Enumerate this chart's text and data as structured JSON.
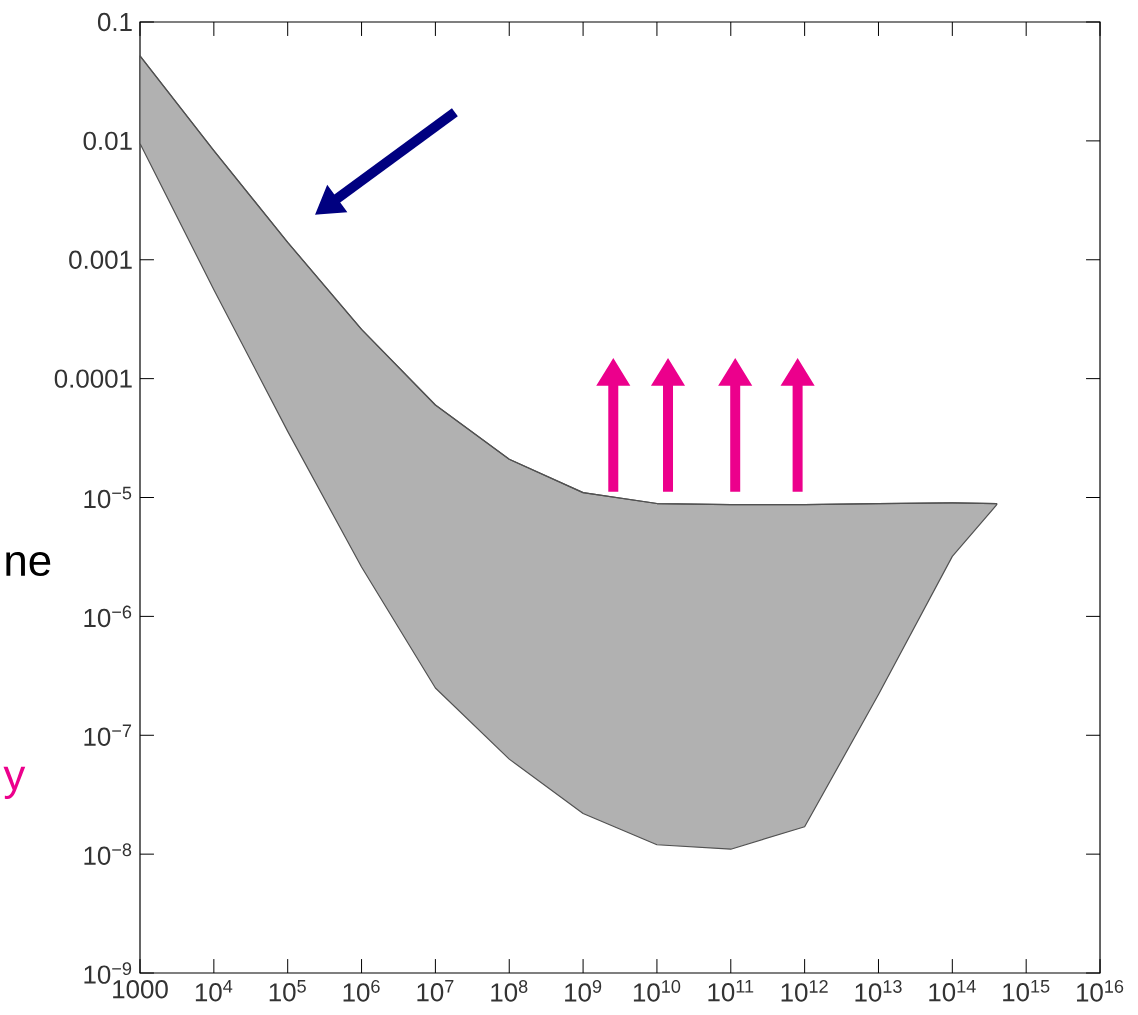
{
  "chart_data": {
    "type": "line",
    "xlim": [
      1000,
      1e+16
    ],
    "ylim": [
      1e-09,
      0.1
    ],
    "log": "xy",
    "xticks": [
      1000,
      {
        "value": 10000.0,
        "label": "10$^{4}$"
      },
      {
        "value": 100000.0,
        "label": "10$^{5}$"
      },
      {
        "value": 1000000.0,
        "label": "10$^{6}$"
      },
      {
        "value": 10000000.0,
        "label": "10$^{7}$"
      },
      {
        "value": 100000000.0,
        "label": "10$^{8}$"
      },
      {
        "value": 1000000000.0,
        "label": "10$^{9}$"
      },
      {
        "value": 10000000000.0,
        "label": "10$^{10}$"
      },
      {
        "value": 100000000000.0,
        "label": "10$^{11}$"
      },
      {
        "value": 1000000000000.0,
        "label": "10$^{12}$"
      },
      {
        "value": 10000000000000.0,
        "label": "10$^{13}$"
      },
      {
        "value": 100000000000000.0,
        "label": "10$^{14}$"
      },
      {
        "value": 1000000000000000.0,
        "label": "10$^{15}$"
      },
      {
        "value": 1e+16,
        "label": "10$^{16}$"
      }
    ],
    "yticks": [
      {
        "value": 1e-09,
        "label": "10$^{−9}$"
      },
      {
        "value": 1e-08,
        "label": "10$^{−8}$"
      },
      {
        "value": 1e-07,
        "label": "10$^{−7}$"
      },
      {
        "value": 1e-06,
        "label": "10$^{−6}$"
      },
      {
        "value": 1e-05,
        "label": "10$^{−5}$"
      },
      0.0001,
      0.001,
      0.01,
      0.1
    ],
    "x": [
      1000,
      10000.0,
      100000.0,
      1000000.0,
      10000000.0,
      100000000.0,
      1000000000.0,
      10000000000.0,
      100000000000.0,
      1000000000000.0,
      10000000000000.0,
      100000000000000.0,
      400000000000000.0
    ],
    "series": [
      {
        "color": "#515151",
        "values": [
          0.052,
          0.0083,
          0.0014,
          0.00026,
          6e-05,
          2.1e-05,
          1.1e-05,
          8.9e-06,
          8.7e-06,
          8.7e-06,
          8.9e-06,
          9e-06,
          8.9e-06
        ],
        "upper": [
          0.052,
          0.0083,
          0.0014,
          0.00026,
          6e-05,
          2.1e-05,
          1.1e-05,
          8.9e-06,
          8.7e-06,
          8.7e-06,
          8.9e-06,
          9e-06,
          8.9e-06
        ],
        "lower": [
          0.0095,
          0.00056,
          3.6e-05,
          2.6e-06,
          2.5e-07,
          6.3e-08,
          2.2e-08,
          1.2e-08,
          1.1e-08,
          1.7e-08,
          2.2e-07,
          3.2e-06,
          8.7e-06
        ]
      }
    ],
    "annotations": [
      "ne",
      "y"
    ]
  }
}
